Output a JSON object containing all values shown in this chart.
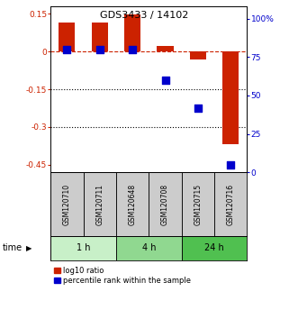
{
  "title": "GDS3433 / 14102",
  "samples": [
    "GSM120710",
    "GSM120711",
    "GSM120648",
    "GSM120708",
    "GSM120715",
    "GSM120716"
  ],
  "log10_ratio": [
    0.115,
    0.115,
    0.148,
    0.022,
    -0.03,
    -0.37
  ],
  "percentile_rank": [
    80,
    80,
    80,
    60,
    42,
    5
  ],
  "time_groups": [
    {
      "label": "1 h",
      "samples": [
        "GSM120710",
        "GSM120711"
      ],
      "color": "#c8f0c8"
    },
    {
      "label": "4 h",
      "samples": [
        "GSM120648",
        "GSM120708"
      ],
      "color": "#90d890"
    },
    {
      "label": "24 h",
      "samples": [
        "GSM120715",
        "GSM120716"
      ],
      "color": "#50c050"
    }
  ],
  "ylim_left": [
    -0.48,
    0.18
  ],
  "ylim_right": [
    0,
    108
  ],
  "yticks_left": [
    0.15,
    0,
    -0.15,
    -0.3,
    -0.45
  ],
  "yticks_right": [
    100,
    75,
    50,
    25,
    0
  ],
  "bar_color": "#cc2200",
  "dot_color": "#0000cc",
  "bar_width": 0.5,
  "dot_size": 28,
  "hline_y": 0,
  "dotted_lines": [
    -0.15,
    -0.3
  ],
  "bg_color": "#ffffff",
  "plot_bg": "#ffffff",
  "label_log10": "log10 ratio",
  "label_pct": "percentile rank within the sample",
  "time_label": "time",
  "sample_bg": "#cccccc",
  "title_fontsize": 8,
  "tick_fontsize": 6.5,
  "sample_fontsize": 5.5,
  "time_fontsize": 7,
  "legend_fontsize": 6
}
